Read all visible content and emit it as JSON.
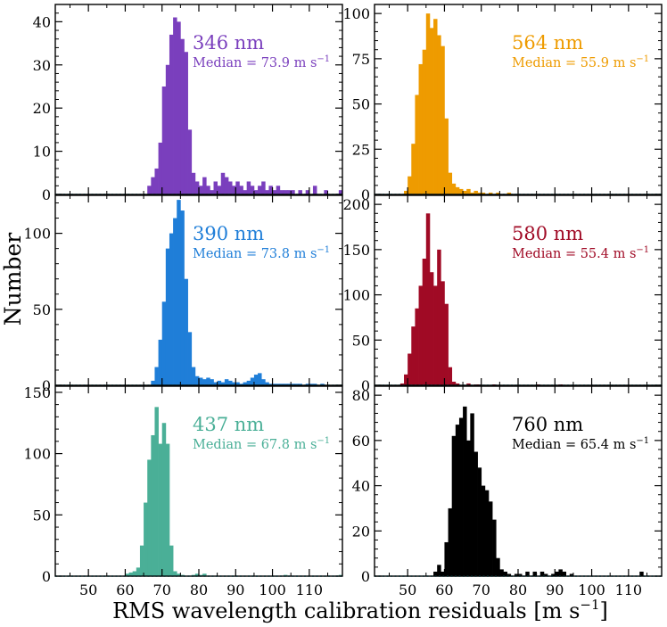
{
  "figure": {
    "ylabel": "Number",
    "xlabel_main": "RMS wavelength calibration residuals [m s",
    "xlabel_sup": "−1",
    "xlabel_close": "]"
  },
  "chart_data": [
    {
      "type": "bar",
      "wavelength_label": "346 nm",
      "median_text": "Median = 73.9 m s",
      "median_sup": "−1",
      "color": "#7a3fbd",
      "xlim": [
        41,
        119
      ],
      "ylim": [
        0,
        44
      ],
      "yticks": [
        0,
        10,
        20,
        30,
        40
      ],
      "xticks": [
        50,
        60,
        70,
        80,
        90,
        100,
        110
      ],
      "bin_width": 1,
      "bins": [
        [
          66,
          2
        ],
        [
          67,
          4
        ],
        [
          68,
          6
        ],
        [
          69,
          12
        ],
        [
          70,
          25
        ],
        [
          71,
          30
        ],
        [
          72,
          37
        ],
        [
          73,
          41
        ],
        [
          74,
          40
        ],
        [
          75,
          36
        ],
        [
          76,
          33
        ],
        [
          77,
          15
        ],
        [
          78,
          5
        ],
        [
          79,
          3
        ],
        [
          80,
          2
        ],
        [
          81,
          4
        ],
        [
          82,
          2
        ],
        [
          83,
          1
        ],
        [
          84,
          3
        ],
        [
          85,
          2
        ],
        [
          86,
          5
        ],
        [
          87,
          4
        ],
        [
          88,
          3
        ],
        [
          89,
          2
        ],
        [
          90,
          3
        ],
        [
          91,
          2
        ],
        [
          92,
          1
        ],
        [
          93,
          3
        ],
        [
          94,
          2
        ],
        [
          95,
          1
        ],
        [
          96,
          2
        ],
        [
          97,
          3
        ],
        [
          98,
          1
        ],
        [
          99,
          2
        ],
        [
          100,
          1
        ],
        [
          101,
          2
        ],
        [
          102,
          1
        ],
        [
          103,
          1
        ],
        [
          104,
          1
        ],
        [
          105,
          1
        ],
        [
          107,
          1
        ],
        [
          109,
          1
        ],
        [
          111,
          2
        ],
        [
          114,
          1
        ],
        [
          118,
          1
        ]
      ]
    },
    {
      "type": "bar",
      "wavelength_label": "564 nm",
      "median_text": "Median = 55.9 m s",
      "median_sup": "−1",
      "color": "#ee9b00",
      "xlim": [
        41,
        119
      ],
      "ylim": [
        0,
        105
      ],
      "yticks": [
        0,
        25,
        50,
        75,
        100
      ],
      "xticks": [
        50,
        60,
        70,
        80,
        90,
        100,
        110
      ],
      "bin_width": 1,
      "bins": [
        [
          49,
          2
        ],
        [
          50,
          10
        ],
        [
          51,
          28
        ],
        [
          52,
          55
        ],
        [
          53,
          72
        ],
        [
          54,
          80
        ],
        [
          55,
          100
        ],
        [
          56,
          92
        ],
        [
          57,
          97
        ],
        [
          58,
          88
        ],
        [
          59,
          82
        ],
        [
          60,
          42
        ],
        [
          61,
          12
        ],
        [
          62,
          6
        ],
        [
          63,
          4
        ],
        [
          64,
          3
        ],
        [
          65,
          2
        ],
        [
          66,
          3
        ],
        [
          67,
          1
        ],
        [
          68,
          2
        ],
        [
          69,
          1
        ],
        [
          70,
          1
        ],
        [
          72,
          1
        ],
        [
          74,
          1
        ],
        [
          77,
          1
        ]
      ]
    },
    {
      "type": "bar",
      "wavelength_label": "390 nm",
      "median_text": "Median = 73.8 m s",
      "median_sup": "−1",
      "color": "#1f7ed8",
      "xlim": [
        41,
        119
      ],
      "ylim": [
        0,
        125
      ],
      "yticks": [
        0,
        50,
        100
      ],
      "xticks": [
        50,
        60,
        70,
        80,
        90,
        100,
        110
      ],
      "bin_width": 1,
      "bins": [
        [
          67,
          3
        ],
        [
          68,
          12
        ],
        [
          69,
          30
        ],
        [
          70,
          55
        ],
        [
          71,
          90
        ],
        [
          72,
          100
        ],
        [
          73,
          110
        ],
        [
          74,
          122
        ],
        [
          75,
          115
        ],
        [
          76,
          70
        ],
        [
          77,
          35
        ],
        [
          78,
          12
        ],
        [
          79,
          6
        ],
        [
          80,
          5
        ],
        [
          81,
          4
        ],
        [
          82,
          5
        ],
        [
          83,
          4
        ],
        [
          84,
          2
        ],
        [
          85,
          3
        ],
        [
          86,
          2
        ],
        [
          87,
          4
        ],
        [
          88,
          3
        ],
        [
          89,
          2
        ],
        [
          90,
          2
        ],
        [
          91,
          1
        ],
        [
          92,
          2
        ],
        [
          93,
          3
        ],
        [
          94,
          5
        ],
        [
          95,
          7
        ],
        [
          96,
          8
        ],
        [
          97,
          4
        ],
        [
          98,
          2
        ],
        [
          99,
          1
        ],
        [
          100,
          1
        ],
        [
          101,
          1
        ],
        [
          102,
          1
        ],
        [
          103,
          1
        ],
        [
          104,
          1
        ],
        [
          105,
          1
        ],
        [
          106,
          1
        ],
        [
          107,
          1
        ],
        [
          109,
          1
        ],
        [
          110,
          1
        ],
        [
          111,
          1
        ],
        [
          113,
          1
        ]
      ]
    },
    {
      "type": "bar",
      "wavelength_label": "580 nm",
      "median_text": "Median = 55.4 m s",
      "median_sup": "−1",
      "color": "#a00a25",
      "xlim": [
        41,
        119
      ],
      "ylim": [
        0,
        210
      ],
      "yticks": [
        0,
        50,
        100,
        150,
        200
      ],
      "xticks": [
        50,
        60,
        70,
        80,
        90,
        100,
        110
      ],
      "bin_width": 1,
      "bins": [
        [
          48,
          2
        ],
        [
          49,
          12
        ],
        [
          50,
          35
        ],
        [
          51,
          65
        ],
        [
          52,
          85
        ],
        [
          53,
          110
        ],
        [
          54,
          140
        ],
        [
          55,
          190
        ],
        [
          56,
          125
        ],
        [
          57,
          110
        ],
        [
          58,
          150
        ],
        [
          59,
          115
        ],
        [
          60,
          90
        ],
        [
          61,
          20
        ],
        [
          62,
          4
        ],
        [
          63,
          2
        ],
        [
          66,
          2
        ],
        [
          68,
          1
        ],
        [
          69,
          1
        ],
        [
          73,
          1
        ],
        [
          85,
          1
        ],
        [
          91,
          1
        ]
      ]
    },
    {
      "type": "bar",
      "wavelength_label": "437 nm",
      "median_text": "Median = 67.8 m s",
      "median_sup": "−1",
      "color": "#4aaf97",
      "xlim": [
        41,
        119
      ],
      "ylim": [
        0,
        155
      ],
      "yticks": [
        0,
        50,
        100,
        150
      ],
      "xticks": [
        50,
        60,
        70,
        80,
        90,
        100,
        110
      ],
      "bin_width": 1,
      "bins": [
        [
          60,
          2
        ],
        [
          61,
          3
        ],
        [
          62,
          4
        ],
        [
          63,
          7
        ],
        [
          64,
          25
        ],
        [
          65,
          60
        ],
        [
          66,
          95
        ],
        [
          67,
          115
        ],
        [
          68,
          138
        ],
        [
          69,
          108
        ],
        [
          70,
          125
        ],
        [
          71,
          108
        ],
        [
          72,
          25
        ],
        [
          73,
          4
        ],
        [
          74,
          2
        ],
        [
          75,
          1
        ],
        [
          78,
          1
        ],
        [
          79,
          2
        ],
        [
          80,
          1
        ],
        [
          81,
          2
        ],
        [
          103,
          1
        ],
        [
          118,
          1
        ]
      ]
    },
    {
      "type": "bar",
      "wavelength_label": "760 nm",
      "median_text": "Median = 65.4 m s",
      "median_sup": "−1",
      "color": "#000000",
      "xlim": [
        41,
        119
      ],
      "ylim": [
        0,
        84
      ],
      "yticks": [
        0,
        20,
        40,
        60,
        80
      ],
      "xticks": [
        50,
        60,
        70,
        80,
        90,
        100,
        110
      ],
      "bin_width": 1,
      "bins": [
        [
          57,
          2
        ],
        [
          58,
          5
        ],
        [
          59,
          2
        ],
        [
          60,
          15
        ],
        [
          61,
          30
        ],
        [
          62,
          62
        ],
        [
          63,
          67
        ],
        [
          64,
          70
        ],
        [
          65,
          75
        ],
        [
          66,
          60
        ],
        [
          67,
          72
        ],
        [
          68,
          55
        ],
        [
          69,
          48
        ],
        [
          70,
          40
        ],
        [
          71,
          38
        ],
        [
          72,
          33
        ],
        [
          73,
          25
        ],
        [
          74,
          8
        ],
        [
          75,
          3
        ],
        [
          76,
          2
        ],
        [
          77,
          1
        ],
        [
          79,
          1
        ],
        [
          80,
          1
        ],
        [
          82,
          2
        ],
        [
          84,
          2
        ],
        [
          86,
          2
        ],
        [
          87,
          1
        ],
        [
          89,
          1
        ],
        [
          90,
          2
        ],
        [
          91,
          3
        ],
        [
          92,
          2
        ],
        [
          94,
          1
        ],
        [
          113,
          2
        ]
      ]
    }
  ]
}
